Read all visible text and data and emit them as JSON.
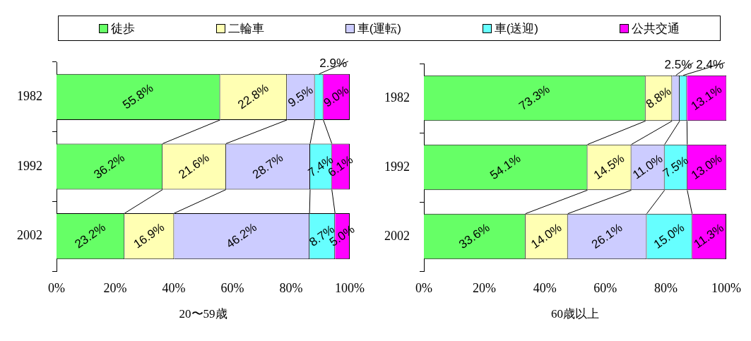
{
  "chart_data": [
    {
      "type": "bar",
      "orientation": "horizontal",
      "stacked": true,
      "xlabel": "20〜59歳",
      "categories": [
        "1982",
        "1992",
        "2002"
      ],
      "legend": "top",
      "grid": false,
      "xlim": [
        0,
        100
      ],
      "xticks": [
        {
          "value": 0,
          "label": "0%"
        },
        {
          "value": 20,
          "label": "20%"
        },
        {
          "value": 40,
          "label": "40%"
        },
        {
          "value": 60,
          "label": "60%"
        },
        {
          "value": 80,
          "label": "80%"
        },
        {
          "value": 100,
          "label": "100%"
        }
      ],
      "series": [
        {
          "name": "徒歩",
          "color": "#66ff66",
          "values": [
            55.8,
            36.2,
            23.2
          ],
          "value_labels": [
            "55.8%",
            "36.2%",
            "23.2%"
          ]
        },
        {
          "name": "二輪車",
          "color": "#ffffb3",
          "values": [
            22.8,
            21.6,
            16.9
          ],
          "value_labels": [
            "22.8%",
            "21.6%",
            "16.9%"
          ]
        },
        {
          "name": "車(運転)",
          "color": "#ccccff",
          "values": [
            9.5,
            28.7,
            46.2
          ],
          "value_labels": [
            "9.5%",
            "28.7%",
            "46.2%"
          ]
        },
        {
          "name": "車(送迎)",
          "color": "#66ffff",
          "values": [
            2.9,
            7.4,
            8.7
          ],
          "value_labels": [
            "2.9%",
            "7.4%",
            "8.7%"
          ]
        },
        {
          "name": "公共交通",
          "color": "#ff00ff",
          "values": [
            9.0,
            6.1,
            5.0
          ],
          "value_labels": [
            "9.0%",
            "6.1%",
            "5.0%"
          ]
        }
      ]
    },
    {
      "type": "bar",
      "orientation": "horizontal",
      "stacked": true,
      "xlabel": "60歳以上",
      "categories": [
        "1982",
        "1992",
        "2002"
      ],
      "grid": false,
      "xlim": [
        0,
        100
      ],
      "xticks": [
        {
          "value": 0,
          "label": "0%"
        },
        {
          "value": 20,
          "label": "20%"
        },
        {
          "value": 40,
          "label": "40%"
        },
        {
          "value": 60,
          "label": "60%"
        },
        {
          "value": 80,
          "label": "80%"
        },
        {
          "value": 100,
          "label": "100%"
        }
      ],
      "series": [
        {
          "color": "#66ff66",
          "values": [
            73.3,
            54.1,
            33.6
          ],
          "value_labels": [
            "73.3%",
            "54.1%",
            "33.6%"
          ]
        },
        {
          "color": "#ffffb3",
          "values": [
            8.8,
            14.5,
            14.0
          ],
          "value_labels": [
            "8.8%",
            "14.5%",
            "14.0%"
          ]
        },
        {
          "color": "#ccccff",
          "values": [
            2.5,
            11.0,
            26.1
          ],
          "value_labels": [
            "2.5%",
            "11.0%",
            "26.1%"
          ]
        },
        {
          "color": "#66ffff",
          "values": [
            2.4,
            7.5,
            15.0
          ],
          "value_labels": [
            "2.4%",
            "7.5%",
            "15.0%"
          ]
        },
        {
          "color": "#ff00ff",
          "values": [
            13.1,
            13.0,
            11.3
          ],
          "value_labels": [
            "13.1%",
            "13.0%",
            "11.3%"
          ]
        }
      ]
    }
  ]
}
